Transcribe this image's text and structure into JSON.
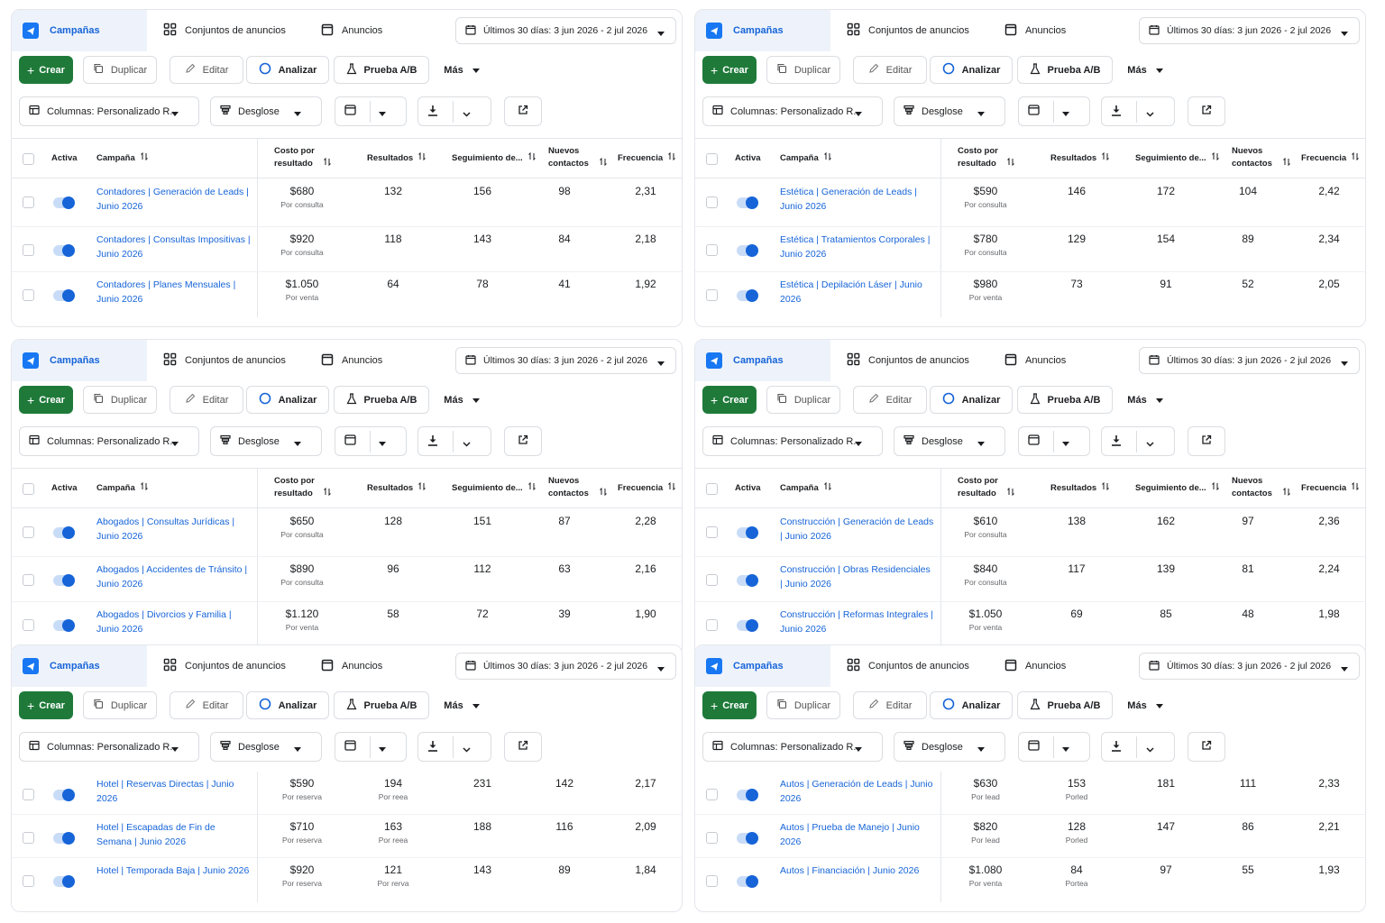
{
  "common": {
    "tabs": {
      "campaigns": "Campañas",
      "ad_sets": "Conjuntos de anuncios",
      "ads": "Anuncios"
    },
    "date_range": "Últimos 30 días: 3 jun 2026 - 2 jul 2026",
    "actions": {
      "create": "Crear",
      "duplicate": "Duplicar",
      "edit": "Editar",
      "analyze": "Analizar",
      "ab_test": "Prueba A/B",
      "more": "Más"
    },
    "tools": {
      "columns": "Columnas: Personalizado R.",
      "breakdown": "Desglose"
    },
    "headers": {
      "active": "Activa",
      "campaign": "Campaña",
      "cost_line1": "Costo por",
      "cost_line2": "resultado",
      "results": "Resultados",
      "tracking": "Seguimiento de...",
      "new_line1": "Nuevos",
      "new_line2": "contactos",
      "frequency": "Frecuencia"
    },
    "colors": {
      "accent": "#1664d8",
      "create_button": "#1f7a3a",
      "active_tab_bg": "#eef3fb"
    }
  },
  "panels": [
    {
      "rows": [
        {
          "name": "Contadores | Generación de Leads | Junio 2026",
          "cost": "$680",
          "cost_sub": "Por consulta",
          "results": "132",
          "tracking": "156",
          "new_contacts": "98",
          "frequency": "2,31"
        },
        {
          "name": "Contadores | Consultas Impositivas | Junio 2026",
          "cost": "$920",
          "cost_sub": "Por consulta",
          "results": "118",
          "tracking": "143",
          "new_contacts": "84",
          "frequency": "2,18"
        },
        {
          "name": "Contadores | Planes Mensuales | Junio 2026",
          "cost": "$1.050",
          "cost_sub": "Por venta",
          "results": "64",
          "tracking": "78",
          "new_contacts": "41",
          "frequency": "1,92"
        }
      ]
    },
    {
      "rows": [
        {
          "name": "Estética | Generación de Leads | Junio 2026",
          "cost": "$590",
          "cost_sub": "Por consulta",
          "results": "146",
          "tracking": "172",
          "new_contacts": "104",
          "frequency": "2,42"
        },
        {
          "name": "Estética | Tratamientos Corporales | Junio 2026",
          "cost": "$780",
          "cost_sub": "Por consulta",
          "results": "129",
          "tracking": "154",
          "new_contacts": "89",
          "frequency": "2,34"
        },
        {
          "name": "Estética | Depilación Láser | Junio 2026",
          "cost": "$980",
          "cost_sub": "Por venta",
          "results": "73",
          "tracking": "91",
          "new_contacts": "52",
          "frequency": "2,05"
        }
      ]
    },
    {
      "rows": [
        {
          "name": "Abogados | Consultas Jurídicas | Junio 2026",
          "cost": "$650",
          "cost_sub": "Por consulta",
          "results": "128",
          "tracking": "151",
          "new_contacts": "87",
          "frequency": "2,28"
        },
        {
          "name": "Abogados | Accidentes de Tránsito | Junio 2026",
          "cost": "$890",
          "cost_sub": "Por consulta",
          "results": "96",
          "tracking": "112",
          "new_contacts": "63",
          "frequency": "2,16"
        },
        {
          "name": "Abogados | Divorcios y Familia | Junio 2026",
          "cost": "$1.120",
          "cost_sub": "Por venta",
          "results": "58",
          "tracking": "72",
          "new_contacts": "39",
          "frequency": "1,90"
        }
      ]
    },
    {
      "rows": [
        {
          "name": "Construcción | Generación de Leads | Junio 2026",
          "cost": "$610",
          "cost_sub": "Por consulta",
          "results": "138",
          "tracking": "162",
          "new_contacts": "97",
          "frequency": "2,36"
        },
        {
          "name": "Construcción | Obras Residenciales | Junio 2026",
          "cost": "$840",
          "cost_sub": "Por consulta",
          "results": "117",
          "tracking": "139",
          "new_contacts": "81",
          "frequency": "2,24"
        },
        {
          "name": "Construcción | Reformas Integrales | Junio 2026",
          "cost": "$1.050",
          "cost_sub": "Por venta",
          "results": "69",
          "tracking": "85",
          "new_contacts": "48",
          "frequency": "1,98"
        }
      ]
    },
    {
      "rows": [
        {
          "name": "Hotel | Reservas Directas | Junio 2026",
          "cost": "$590",
          "cost_sub": "Por reserva",
          "results": "194",
          "results_sub": "Por reea",
          "tracking": "231",
          "new_contacts": "142",
          "frequency": "2,17"
        },
        {
          "name": "Hotel | Escapadas de Fin de Semana | Junio 2026",
          "cost": "$710",
          "cost_sub": "Por reserva",
          "results": "163",
          "results_sub": "Por reea",
          "tracking": "188",
          "new_contacts": "116",
          "frequency": "2,09"
        },
        {
          "name": "Hotel | Temporada Baja | Junio 2026",
          "cost": "$920",
          "cost_sub": "Por reserva",
          "results": "121",
          "results_sub": "Por rerva",
          "tracking": "143",
          "new_contacts": "89",
          "frequency": "1,84"
        }
      ]
    },
    {
      "rows": [
        {
          "name": "Autos | Generación de Leads | Junio 2026",
          "cost": "$630",
          "cost_sub": "Por lead",
          "results": "153",
          "results_sub": "Porled",
          "tracking": "181",
          "new_contacts": "111",
          "frequency": "2,33"
        },
        {
          "name": "Autos | Prueba de Manejo | Junio 2026",
          "cost": "$820",
          "cost_sub": "Por lead",
          "results": "128",
          "results_sub": "Porled",
          "tracking": "147",
          "new_contacts": "86",
          "frequency": "2,21"
        },
        {
          "name": "Autos | Financiación | Junio 2026",
          "cost": "$1.080",
          "cost_sub": "Por venta",
          "results": "84",
          "results_sub": "Portea",
          "tracking": "97",
          "new_contacts": "55",
          "frequency": "1,93"
        }
      ]
    }
  ]
}
